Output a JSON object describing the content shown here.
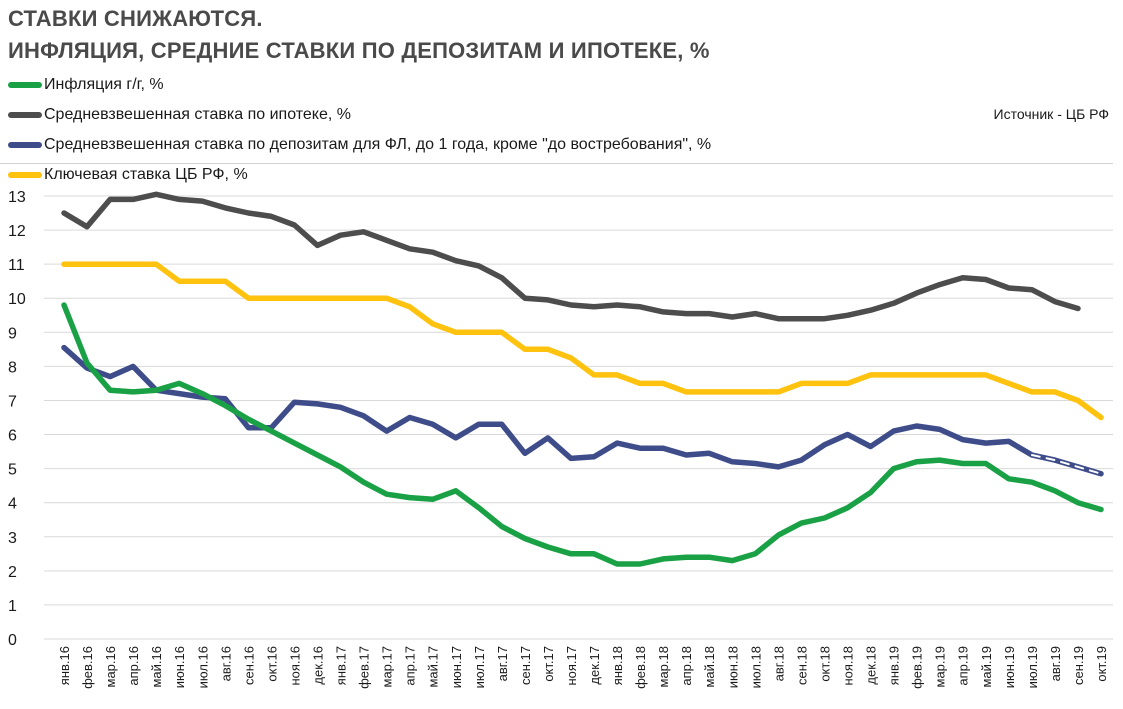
{
  "header": {
    "title_line1": "СТАВКИ СНИЖАЮТСЯ.",
    "title_line2": "ИНФЛЯЦИЯ, СРЕДНИЕ СТАВКИ ПО ДЕПОЗИТАМ И ИПОТЕКЕ, %"
  },
  "source": "Источник  - ЦБ РФ",
  "chart_data": {
    "type": "line",
    "categories": [
      "янв.16",
      "фев.16",
      "мар.16",
      "апр.16",
      "май.16",
      "июн.16",
      "июл.16",
      "авг.16",
      "сен.16",
      "окт.16",
      "ноя.16",
      "дек.16",
      "янв.17",
      "фев.17",
      "мар.17",
      "апр.17",
      "май.17",
      "июн.17",
      "июл.17",
      "авг.17",
      "сен.17",
      "окт.17",
      "ноя.17",
      "дек.17",
      "янв.18",
      "фев.18",
      "мар.18",
      "апр.18",
      "май.18",
      "июн.18",
      "июл.18",
      "авг.18",
      "сен.18",
      "окт.18",
      "ноя.18",
      "дек.18",
      "янв.19",
      "фев.19",
      "мар.19",
      "апр.19",
      "май.19",
      "июн.19",
      "июл.19",
      "авг.19",
      "сен.19",
      "окт.19"
    ],
    "ylim": [
      0,
      13
    ],
    "yticks": [
      0,
      1,
      2,
      3,
      4,
      5,
      6,
      7,
      8,
      9,
      10,
      11,
      12,
      13
    ],
    "grid": "horizontal",
    "legend_position": "top-left",
    "series": [
      {
        "name": "Инфляция г/г,  %",
        "color": "#1aa145",
        "values": [
          9.8,
          8.1,
          7.3,
          7.25,
          7.3,
          7.5,
          7.2,
          6.85,
          6.45,
          6.1,
          5.75,
          5.4,
          5.05,
          4.6,
          4.25,
          4.15,
          4.1,
          4.35,
          3.85,
          3.3,
          2.95,
          2.7,
          2.5,
          2.5,
          2.2,
          2.2,
          2.35,
          2.4,
          2.4,
          2.3,
          2.5,
          3.05,
          3.4,
          3.55,
          3.85,
          4.3,
          5.0,
          5.2,
          5.25,
          5.15,
          5.15,
          4.7,
          4.6,
          4.35,
          4.0,
          3.8
        ]
      },
      {
        "name": "Средневзвешенная ставка по ипотеке, %",
        "color": "#4d4d4d",
        "values": [
          12.5,
          12.1,
          12.9,
          12.9,
          13.05,
          12.9,
          12.85,
          12.65,
          12.5,
          12.4,
          12.15,
          11.55,
          11.85,
          11.95,
          11.7,
          11.45,
          11.35,
          11.1,
          10.95,
          10.6,
          10.0,
          9.95,
          9.8,
          9.75,
          9.8,
          9.75,
          9.6,
          9.55,
          9.55,
          9.45,
          9.55,
          9.4,
          9.4,
          9.4,
          9.5,
          9.65,
          9.85,
          10.15,
          10.4,
          10.6,
          10.55,
          10.3,
          10.25,
          9.9,
          9.7,
          null
        ]
      },
      {
        "name": "Средневзвешенная ставка по депозитам для ФЛ, до 1 года, кроме \"до востребования\", %",
        "color": "#3e4d8a",
        "values": [
          8.55,
          7.95,
          7.7,
          8.0,
          7.3,
          7.2,
          7.1,
          7.05,
          6.2,
          6.2,
          6.95,
          6.9,
          6.8,
          6.55,
          6.1,
          6.5,
          6.3,
          5.9,
          6.3,
          6.3,
          5.45,
          5.9,
          5.3,
          5.35,
          5.75,
          5.6,
          5.6,
          5.4,
          5.45,
          5.2,
          5.15,
          5.05,
          5.25,
          5.7,
          6.0,
          5.65,
          6.1,
          6.25,
          6.15,
          5.85,
          5.75,
          5.8,
          5.4,
          5.25,
          5.05,
          4.85
        ]
      },
      {
        "name": "Ключевая ставка ЦБ РФ, %",
        "color": "#ffc20e",
        "values": [
          11.0,
          11.0,
          11.0,
          11.0,
          11.0,
          10.5,
          10.5,
          10.5,
          10.0,
          10.0,
          10.0,
          10.0,
          10.0,
          10.0,
          10.0,
          9.75,
          9.25,
          9.0,
          9.0,
          9.0,
          8.5,
          8.5,
          8.25,
          7.75,
          7.75,
          7.5,
          7.5,
          7.25,
          7.25,
          7.25,
          7.25,
          7.25,
          7.5,
          7.5,
          7.5,
          7.75,
          7.75,
          7.75,
          7.75,
          7.75,
          7.75,
          7.5,
          7.25,
          7.25,
          7.0,
          6.5
        ]
      }
    ]
  }
}
